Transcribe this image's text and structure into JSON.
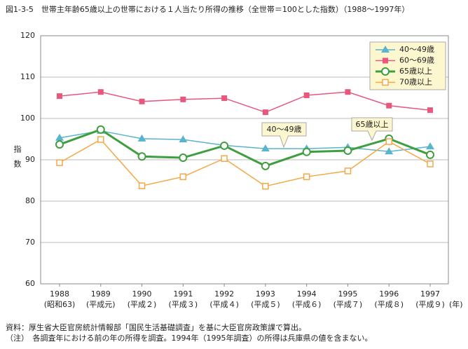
{
  "chart_data": {
    "type": "line",
    "title": "図1-3-5　世帯主年齢65歳以上の世帯における１人当たり所得の推移（全世帯＝100とした指数）（1988～1997年）",
    "y_label": "指数",
    "x_unit": "(年)",
    "categories": [
      "1988",
      "1989",
      "1990",
      "1991",
      "1992",
      "1993",
      "1994",
      "1995",
      "1996",
      "1997"
    ],
    "category_sublabels": [
      "(昭和63)",
      "(平成元)",
      "(平成２)",
      "(平成３)",
      "(平成４)",
      "(平成５)",
      "(平成６)",
      "(平成７)",
      "(平成８)",
      "(平成９)"
    ],
    "series": [
      {
        "name": "40～49歳",
        "color": "#5ab4cc",
        "marker": "triangle",
        "values": [
          95.3,
          97,
          95.1,
          94.9,
          93.5,
          92.7,
          92.7,
          93,
          92,
          93.2
        ]
      },
      {
        "name": "60～69歳",
        "color": "#e8587e",
        "marker": "square",
        "values": [
          105.4,
          106.4,
          104.1,
          104.6,
          104.9,
          101.5,
          105.6,
          106.4,
          103.1,
          102
        ]
      },
      {
        "name": "65歳以上",
        "color": "#3f9e3f",
        "marker": "circle",
        "values": [
          93.7,
          97.3,
          90.8,
          90.5,
          93.4,
          88.5,
          91.9,
          92.2,
          95.1,
          91.2
        ]
      },
      {
        "name": "70歳以上",
        "color": "#f5a846",
        "marker": "open-square",
        "values": [
          89.3,
          94.9,
          83.7,
          85.9,
          90.3,
          83.6,
          85.9,
          87.3,
          94.4,
          89
        ]
      }
    ],
    "annotations": [
      "40～49歳",
      "65歳以上"
    ],
    "ylim": [
      60,
      120
    ],
    "yticks": [
      60,
      70,
      80,
      90,
      100,
      110,
      120
    ],
    "grid": true,
    "legend": "top-right",
    "notes": [
      "資料：厚生省大臣官房統計情報部「国民生活基礎調査」を基に大臣官房政策課で算出。",
      "（注）　各調査年における前の年の所得を調査。1994年（1995年調査）の所得は兵庫県の値を含まない。"
    ]
  }
}
